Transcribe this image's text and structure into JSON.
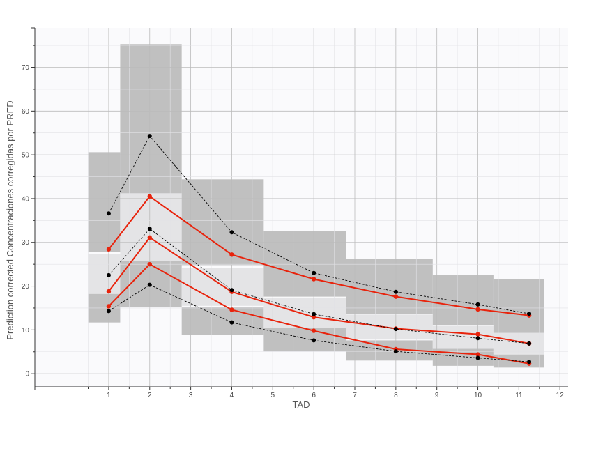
{
  "chart_data": {
    "type": "line",
    "title": "",
    "xlabel": "TAD",
    "ylabel": "Prediction corrected Concentraciones corregidas por PRED",
    "xlim": [
      -0.8,
      12.2
    ],
    "ylim": [
      -3,
      79
    ],
    "x_ticks": [
      1,
      2,
      3,
      4,
      5,
      6,
      7,
      8,
      9,
      10,
      11,
      12
    ],
    "y_ticks": [
      0,
      10,
      20,
      30,
      40,
      50,
      60,
      70
    ],
    "grid": true,
    "legend": "none",
    "colors": {
      "plot_background": "#fafafc",
      "outer_band": "#c0c0c0",
      "median_band": "#e4e4e6",
      "observed": "#e8230c",
      "simulated": "#000000",
      "grid": "#bbbbbb"
    },
    "bins": [
      {
        "x0": 0.5,
        "x1": 1.28,
        "outer_upper": [
          27.8,
          50.6
        ],
        "median": [
          17.9,
          27.4
        ],
        "outer_lower": [
          11.7,
          18.2
        ]
      },
      {
        "x0": 1.28,
        "x1": 2.78,
        "outer_upper": [
          41.2,
          75.3
        ],
        "median": [
          25.8,
          41.2
        ],
        "outer_lower": [
          15.2,
          25.8
        ]
      },
      {
        "x0": 2.78,
        "x1": 4.78,
        "outer_upper": [
          24.8,
          44.4
        ],
        "median": [
          15.5,
          24.2
        ],
        "outer_lower": [
          8.9,
          15.3
        ]
      },
      {
        "x0": 4.78,
        "x1": 6.78,
        "outer_upper": [
          17.6,
          32.6
        ],
        "median": [
          10.5,
          17.4
        ],
        "outer_lower": [
          5.1,
          10.5
        ]
      },
      {
        "x0": 6.78,
        "x1": 8.9,
        "outer_upper": [
          13.6,
          26.2
        ],
        "median": [
          7.8,
          13.5
        ],
        "outer_lower": [
          3.0,
          7.6
        ]
      },
      {
        "x0": 8.9,
        "x1": 10.38,
        "outer_upper": [
          11.0,
          22.6
        ],
        "median": [
          5.9,
          10.9
        ],
        "outer_lower": [
          1.8,
          5.7
        ]
      },
      {
        "x0": 10.38,
        "x1": 11.62,
        "outer_upper": [
          9.3,
          21.6
        ],
        "median": [
          4.5,
          9.3
        ],
        "outer_lower": [
          1.4,
          4.4
        ]
      }
    ],
    "series": [
      {
        "role": "observed",
        "x": [
          1,
          2,
          4,
          6,
          8,
          10,
          11.25
        ],
        "values": [
          28.4,
          40.5,
          27.2,
          21.6,
          17.6,
          14.7,
          13.3
        ]
      },
      {
        "role": "observed",
        "x": [
          1,
          2,
          4,
          6,
          8,
          10,
          11.25
        ],
        "values": [
          18.8,
          31.1,
          18.7,
          12.9,
          10.3,
          9.0,
          6.9
        ]
      },
      {
        "role": "observed",
        "x": [
          1,
          2,
          4,
          6,
          8,
          10,
          11.25
        ],
        "values": [
          15.4,
          25.0,
          14.6,
          9.8,
          5.6,
          4.4,
          2.3
        ]
      },
      {
        "role": "simulated",
        "x": [
          1,
          2,
          4,
          6,
          8,
          10,
          11.25
        ],
        "values": [
          36.6,
          54.3,
          32.3,
          23.0,
          18.7,
          15.8,
          13.7
        ]
      },
      {
        "role": "simulated",
        "x": [
          1,
          2,
          4,
          6,
          8,
          10,
          11.25
        ],
        "values": [
          22.5,
          33.1,
          19.1,
          13.6,
          10.2,
          8.1,
          6.9
        ]
      },
      {
        "role": "simulated",
        "x": [
          1,
          2,
          4,
          6,
          8,
          10,
          11.25
        ],
        "values": [
          14.3,
          20.3,
          11.7,
          7.6,
          5.1,
          3.6,
          2.7
        ]
      }
    ]
  }
}
